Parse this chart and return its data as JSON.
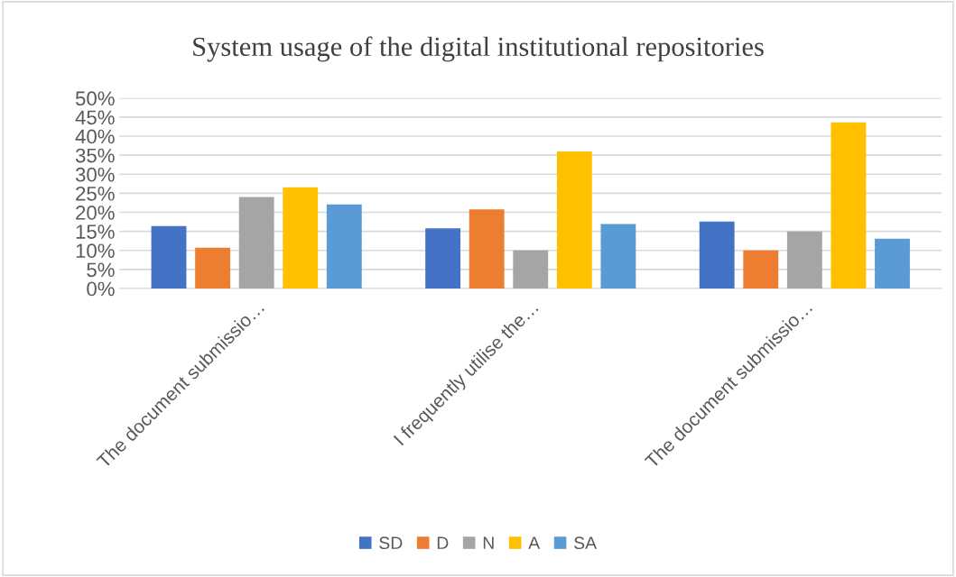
{
  "chart_data": {
    "type": "bar",
    "title": "System usage of the digital institutional repositories",
    "categories": [
      "The document submissio…",
      "I frequently utilise the…",
      "The document submissio…"
    ],
    "series": [
      {
        "name": "SD",
        "color": "#4472c4",
        "values": [
          16.4,
          15.8,
          17.6
        ]
      },
      {
        "name": "D",
        "color": "#ed7d31",
        "values": [
          10.7,
          20.8,
          10.0
        ]
      },
      {
        "name": "N",
        "color": "#a5a5a5",
        "values": [
          24.0,
          10.0,
          15.0
        ]
      },
      {
        "name": "A",
        "color": "#ffc000",
        "values": [
          26.6,
          36.0,
          43.6
        ]
      },
      {
        "name": "SA",
        "color": "#5b9bd5",
        "values": [
          22.1,
          16.9,
          13.1
        ]
      }
    ],
    "ylim": [
      0,
      50
    ],
    "yticks": [
      {
        "value": 0,
        "label": "0%"
      },
      {
        "value": 5,
        "label": "5%"
      },
      {
        "value": 10,
        "label": "10%"
      },
      {
        "value": 15,
        "label": "15%"
      },
      {
        "value": 20,
        "label": "20%"
      },
      {
        "value": 25,
        "label": "25%"
      },
      {
        "value": 30,
        "label": "30%"
      },
      {
        "value": 35,
        "label": "35%"
      },
      {
        "value": 40,
        "label": "40%"
      },
      {
        "value": 45,
        "label": "45%"
      },
      {
        "value": 50,
        "label": "50%"
      }
    ],
    "grid": "y",
    "legend": "bottom"
  }
}
